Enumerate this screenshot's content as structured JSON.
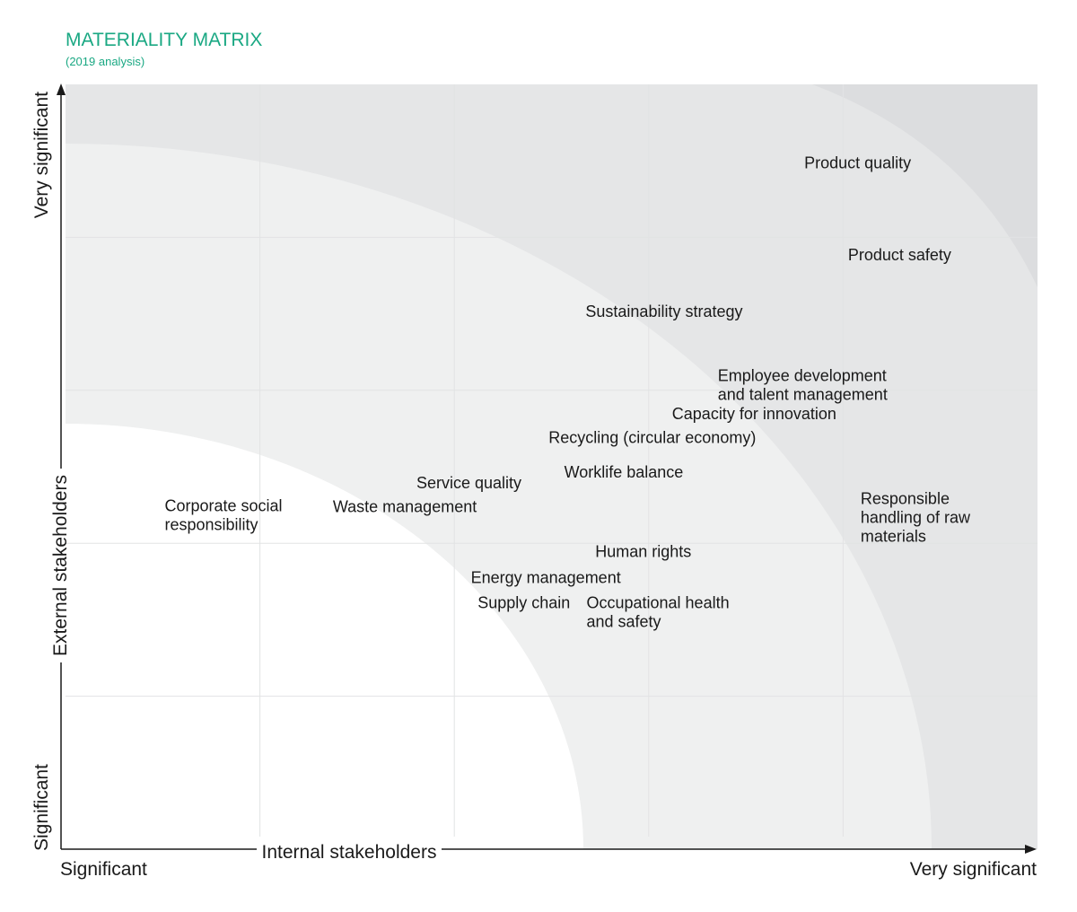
{
  "title": "MATERIALITY MATRIX",
  "subtitle": "(2019 analysis)",
  "colors": {
    "accent": "#1aa883",
    "zone_low": "#ffffff",
    "zone_mid": "#eff0f0",
    "zone_high": "#e5e6e7",
    "zone_top": "#dcdddf",
    "grid": "#e2e3e4",
    "axis": "#1a1a1a"
  },
  "axes": {
    "x_title": "Internal stakeholders",
    "x_min_label": "Significant",
    "x_max_label": "Very significant",
    "y_title": "External stakeholders",
    "y_min_label": "Significant",
    "y_max_label": "Very significant"
  },
  "chart_data": {
    "type": "scatter",
    "title": "MATERIALITY MATRIX",
    "subtitle": "(2019 analysis)",
    "xlabel": "Internal stakeholders",
    "ylabel": "External stakeholders",
    "xlim": [
      0,
      1
    ],
    "ylim": [
      0,
      1
    ],
    "grid": true,
    "points": [
      {
        "lines": [
          "Product quality"
        ],
        "x": 0.76,
        "y": 0.89
      },
      {
        "lines": [
          "Product safety"
        ],
        "x": 0.805,
        "y": 0.77
      },
      {
        "lines": [
          "Sustainability strategy"
        ],
        "x": 0.535,
        "y": 0.696
      },
      {
        "lines": [
          "Employee development",
          "and talent management"
        ],
        "x": 0.671,
        "y": 0.612
      },
      {
        "lines": [
          "Capacity for innovation"
        ],
        "x": 0.624,
        "y": 0.562
      },
      {
        "lines": [
          "Recycling (circular economy)"
        ],
        "x": 0.497,
        "y": 0.531
      },
      {
        "lines": [
          "Worklife balance"
        ],
        "x": 0.513,
        "y": 0.486
      },
      {
        "lines": [
          "Service quality"
        ],
        "x": 0.361,
        "y": 0.472
      },
      {
        "lines": [
          "Corporate social",
          "responsibility"
        ],
        "x": 0.102,
        "y": 0.442
      },
      {
        "lines": [
          "Waste management"
        ],
        "x": 0.275,
        "y": 0.441
      },
      {
        "lines": [
          "Responsible",
          "handling of raw",
          "materials"
        ],
        "x": 0.818,
        "y": 0.451
      },
      {
        "lines": [
          "Human rights"
        ],
        "x": 0.545,
        "y": 0.382
      },
      {
        "lines": [
          "Energy management"
        ],
        "x": 0.417,
        "y": 0.348
      },
      {
        "lines": [
          "Supply chain"
        ],
        "x": 0.424,
        "y": 0.315
      },
      {
        "lines": [
          "Occupational health",
          "and safety"
        ],
        "x": 0.536,
        "y": 0.315
      }
    ]
  }
}
